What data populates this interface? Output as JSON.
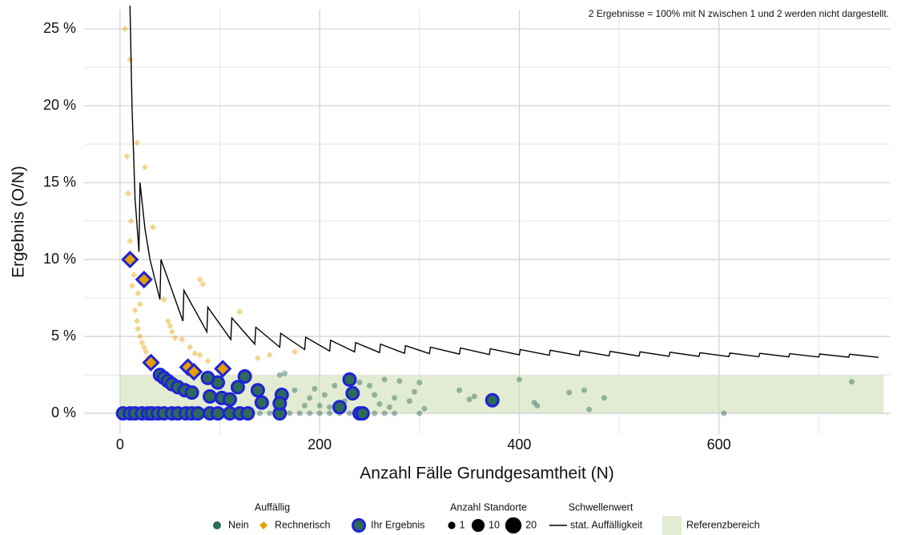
{
  "chart_data": {
    "type": "scatter",
    "annotation": "2 Ergebnisse = 100% mit N zwischen 1 und 2 werden nicht dargestellt.",
    "x_label": "Anzahl Fälle Grundgesamtheit (N)",
    "y_label": "Ergebnis (O/N)",
    "xlim": [
      -36,
      772
    ],
    "ylim": [
      -1.35,
      26.25
    ],
    "xticks": [
      0,
      200,
      400,
      600
    ],
    "xminor": [
      100,
      300,
      500,
      700
    ],
    "yticks": [
      {
        "value": 0,
        "label": "0 %"
      },
      {
        "value": 5,
        "label": "5 %"
      },
      {
        "value": 10,
        "label": "10 %"
      },
      {
        "value": 15,
        "label": "15 %"
      },
      {
        "value": 20,
        "label": "20 %"
      },
      {
        "value": 25,
        "label": "25 %"
      }
    ],
    "yminor": [
      2.5,
      7.5,
      12.5,
      17.5,
      22.5
    ],
    "grid": true,
    "legend_position": "bottom",
    "legend_group_title": "Auffällig",
    "reference": {
      "name": "Referenzbereich",
      "xlim": [
        0,
        765
      ],
      "ylim": [
        0,
        2.5
      ],
      "color": "#e2ecd2"
    },
    "threshold": {
      "group_title": "Schwellenwert",
      "name": "stat. Auffälligkeit",
      "color": "#000000",
      "x": [
        10,
        12,
        15,
        19,
        20,
        25,
        30,
        40,
        41,
        63,
        64,
        87,
        88,
        111,
        112,
        135,
        136,
        160,
        161,
        185,
        186,
        210,
        211,
        235,
        236,
        260,
        261,
        285,
        286,
        310,
        311,
        340,
        341,
        370,
        371,
        400,
        401,
        430,
        431,
        460,
        461,
        490,
        491,
        520,
        521,
        550,
        551,
        580,
        581,
        610,
        611,
        640,
        641,
        670,
        671,
        700,
        701,
        730,
        731,
        760
      ],
      "values": [
        26.5,
        20,
        14,
        10.5,
        15,
        12,
        10,
        7.4,
        10,
        6,
        8,
        5.3,
        6.9,
        4.8,
        6.2,
        4.5,
        5.6,
        4.3,
        5.2,
        4.15,
        4.95,
        4.05,
        4.75,
        4,
        4.6,
        3.95,
        4.5,
        3.9,
        4.4,
        3.88,
        4.3,
        3.85,
        4.25,
        3.82,
        4.2,
        3.8,
        4.15,
        3.78,
        4.1,
        3.76,
        4.06,
        3.74,
        4.03,
        3.72,
        4,
        3.71,
        3.97,
        3.7,
        3.94,
        3.69,
        3.92,
        3.68,
        3.9,
        3.67,
        3.88,
        3.66,
        3.86,
        3.65,
        3.84,
        3.64
      ]
    },
    "size_legend": {
      "title": "Anzahl Standorte",
      "values": [
        1,
        10,
        20
      ]
    },
    "series": [
      {
        "name": "Nein",
        "color": "#2d6a58",
        "marker": "circle",
        "x": [
          165,
          160,
          175,
          185,
          190,
          195,
          200,
          205,
          210,
          215,
          225,
          235,
          240,
          250,
          255,
          260,
          265,
          270,
          275,
          280,
          290,
          295,
          300,
          305,
          340,
          350,
          355,
          400,
          415,
          418,
          450,
          465,
          470,
          485,
          605,
          733,
          300,
          180,
          190,
          200,
          210,
          220,
          230,
          245,
          255,
          265,
          275,
          150,
          140,
          170
        ],
        "values": [
          2.6,
          2.5,
          1.5,
          0.5,
          1,
          1.6,
          0.5,
          1.2,
          0.4,
          1.8,
          0.8,
          1.6,
          2,
          1.8,
          1.2,
          0.6,
          2.2,
          0.4,
          1,
          2.1,
          0.8,
          1.4,
          2,
          0.3,
          1.5,
          0.9,
          1.1,
          2.2,
          0.7,
          0.5,
          1.35,
          1.5,
          0.25,
          1,
          0,
          2.05,
          0,
          0,
          0,
          0,
          0,
          0,
          0,
          0,
          0,
          0,
          0,
          0,
          0,
          0
        ]
      },
      {
        "name": "Rechnerisch",
        "color": "#e69f00",
        "marker": "diamond",
        "x": [
          5,
          10,
          17,
          25,
          7,
          8,
          11,
          33,
          10,
          14,
          12,
          18,
          20,
          15,
          17,
          18,
          20,
          22,
          24,
          26,
          28,
          30,
          32,
          44,
          48,
          50,
          52,
          55,
          80,
          83,
          62,
          70,
          75,
          80,
          88,
          120,
          138,
          150,
          175
        ],
        "values": [
          25,
          23,
          17.6,
          16,
          16.7,
          14.3,
          12.5,
          12.1,
          11.2,
          9,
          8.3,
          7.8,
          7.1,
          6.7,
          6,
          5.5,
          5,
          4.6,
          4.3,
          4,
          3.6,
          3.3,
          3.1,
          7.4,
          6,
          5.7,
          5.3,
          4.9,
          8.7,
          8.4,
          4.8,
          4.3,
          3.9,
          3.8,
          3.4,
          6.6,
          3.6,
          3.8,
          4
        ]
      },
      {
        "name": "Ihr Ergebnis",
        "color": "#1f22d8",
        "marker": "circle",
        "x": [
          3,
          10,
          15,
          22,
          28,
          32,
          38,
          44,
          52,
          58,
          66,
          72,
          78,
          90,
          98,
          110,
          120,
          128,
          160,
          240,
          243,
          40,
          44,
          48,
          52,
          58,
          65,
          72,
          90,
          98,
          88,
          102,
          110,
          125,
          118,
          138,
          142,
          162,
          160,
          220,
          230,
          233,
          373,
          10,
          24,
          31,
          68,
          74,
          103
        ],
        "values": [
          0,
          0,
          0,
          0,
          0,
          0,
          0,
          0,
          0,
          0,
          0,
          0,
          0,
          0,
          0,
          0,
          0,
          0,
          0,
          0,
          0,
          2.5,
          2.3,
          2.1,
          1.9,
          1.7,
          1.5,
          1.35,
          1.1,
          2,
          2.3,
          1,
          0.9,
          2.4,
          1.7,
          1.5,
          0.7,
          1.2,
          0.65,
          0.4,
          2.2,
          1.3,
          0.85,
          10,
          8.7,
          3.3,
          3,
          2.7,
          2.9
        ],
        "kinds": [
          "Nein",
          "Nein",
          "Nein",
          "Nein",
          "Nein",
          "Nein",
          "Nein",
          "Nein",
          "Nein",
          "Nein",
          "Nein",
          "Nein",
          "Nein",
          "Nein",
          "Nein",
          "Nein",
          "Nein",
          "Nein",
          "Nein",
          "Nein",
          "Nein",
          "Nein",
          "Nein",
          "Nein",
          "Nein",
          "Nein",
          "Nein",
          "Nein",
          "Nein",
          "Nein",
          "Nein",
          "Nein",
          "Nein",
          "Nein",
          "Nein",
          "Nein",
          "Nein",
          "Nein",
          "Nein",
          "Nein",
          "Nein",
          "Nein",
          "Nein",
          "Rechnerisch",
          "Rechnerisch",
          "Rechnerisch",
          "Rechnerisch",
          "Rechnerisch",
          "Rechnerisch"
        ]
      }
    ]
  }
}
